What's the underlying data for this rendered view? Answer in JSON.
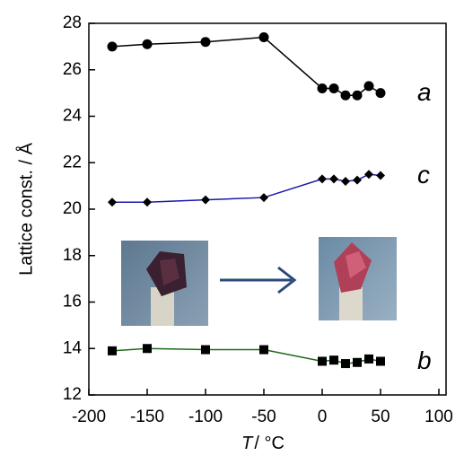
{
  "chart_data": {
    "type": "line",
    "ylabel": "Lattice const. / Å",
    "xlabel_variable": "T",
    "xlabel_unit": "/ °C",
    "x": [
      -180,
      -150,
      -100,
      -50,
      0,
      10,
      20,
      30,
      40,
      50
    ],
    "series": [
      {
        "name": "a",
        "color": "#000000",
        "marker": "circle",
        "values": [
          27.0,
          27.1,
          27.2,
          27.4,
          25.2,
          25.2,
          24.9,
          24.9,
          25.3,
          25.0
        ]
      },
      {
        "name": "c",
        "color": "#1a1aa8",
        "marker": "diamond",
        "values": [
          20.3,
          20.3,
          20.4,
          20.5,
          21.3,
          21.3,
          21.2,
          21.25,
          21.5,
          21.45
        ]
      },
      {
        "name": "b",
        "color": "#1a6b1a",
        "marker": "square",
        "values": [
          13.9,
          14.0,
          13.95,
          13.95,
          13.45,
          13.5,
          13.35,
          13.4,
          13.55,
          13.45
        ]
      }
    ],
    "xlim": [
      -200,
      100
    ],
    "xticks": [
      -200,
      -150,
      -100,
      -50,
      0,
      50,
      100
    ],
    "ylim": [
      12,
      28
    ],
    "yticks": [
      12,
      14,
      16,
      18,
      20,
      22,
      24,
      26,
      28
    ]
  }
}
